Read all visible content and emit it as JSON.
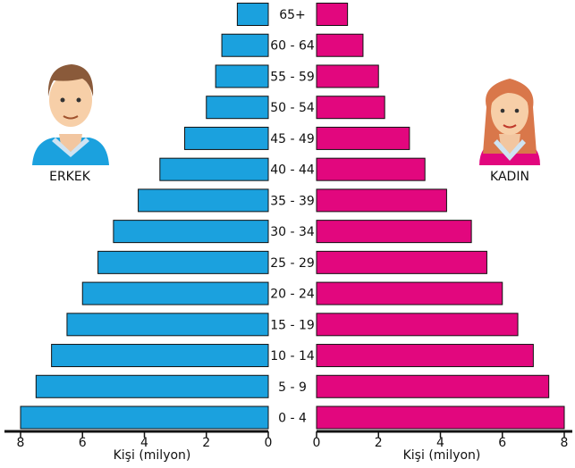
{
  "chart_data": {
    "type": "pyramid",
    "categories": [
      "0 - 4",
      "5 - 9",
      "10 - 14",
      "15 - 19",
      "20 - 24",
      "25 - 29",
      "30 - 34",
      "35 - 39",
      "40 - 44",
      "45 - 49",
      "50 - 54",
      "55 - 59",
      "60 - 64",
      "65+"
    ],
    "series": [
      {
        "name": "ERKEK",
        "color": "#1ba1de",
        "values": [
          8,
          7.5,
          7,
          6.5,
          6,
          5.5,
          5,
          4.2,
          3.5,
          2.7,
          2,
          1.7,
          1.5,
          1
        ]
      },
      {
        "name": "KADIN",
        "color": "#e2077e",
        "values": [
          8,
          7.5,
          7,
          6.5,
          6,
          5.5,
          5,
          4.2,
          3.5,
          3,
          2.2,
          2,
          1.5,
          1
        ]
      }
    ],
    "xlabel": "Kişi (milyon)",
    "xlim": [
      0,
      8
    ],
    "xticks": [
      0,
      2,
      4,
      6,
      8
    ]
  }
}
